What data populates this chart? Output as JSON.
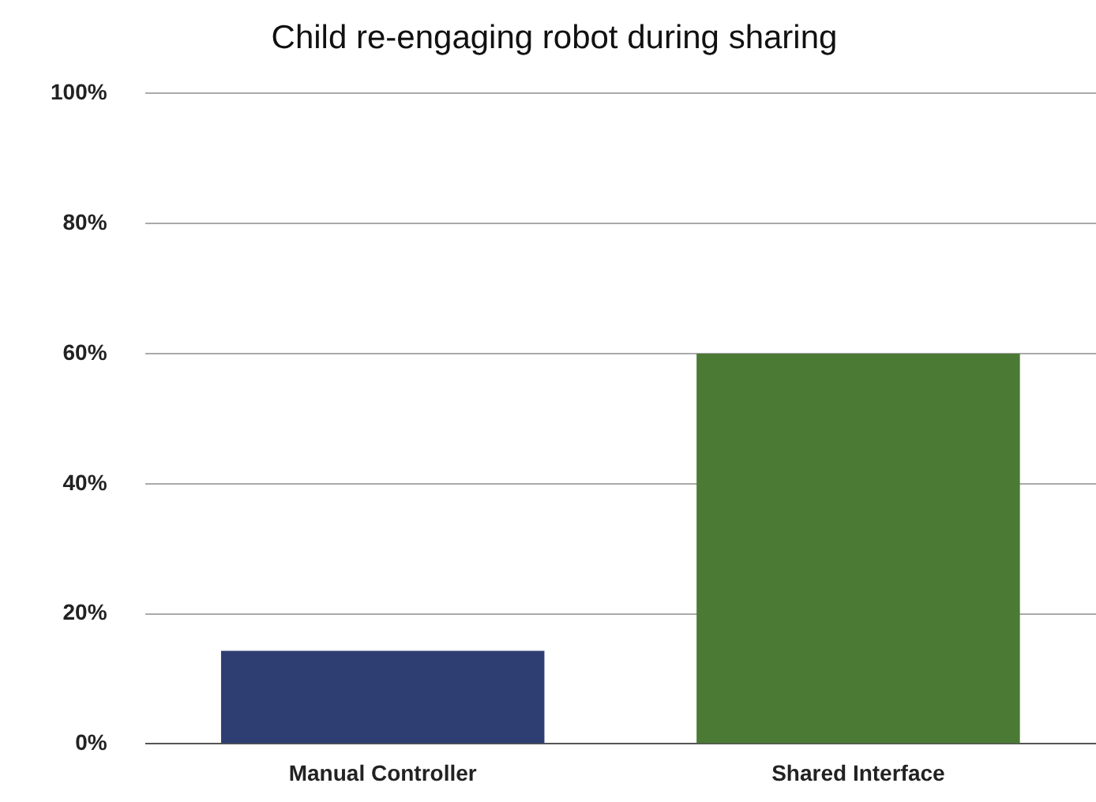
{
  "chart_data": {
    "type": "bar",
    "title": "Child re-engaging robot during sharing",
    "categories": [
      "Manual Controller",
      "Shared Interface"
    ],
    "values": [
      14.3,
      60
    ],
    "colors": [
      "#2f3e72",
      "#4b7a34"
    ],
    "ylim": [
      0,
      100
    ],
    "yticks": [
      {
        "value": 0,
        "label": "0%"
      },
      {
        "value": 20,
        "label": "20%"
      },
      {
        "value": 40,
        "label": "40%"
      },
      {
        "value": 60,
        "label": "60%"
      },
      {
        "value": 80,
        "label": "80%"
      },
      {
        "value": 100,
        "label": "100%"
      }
    ],
    "grid": "y"
  }
}
